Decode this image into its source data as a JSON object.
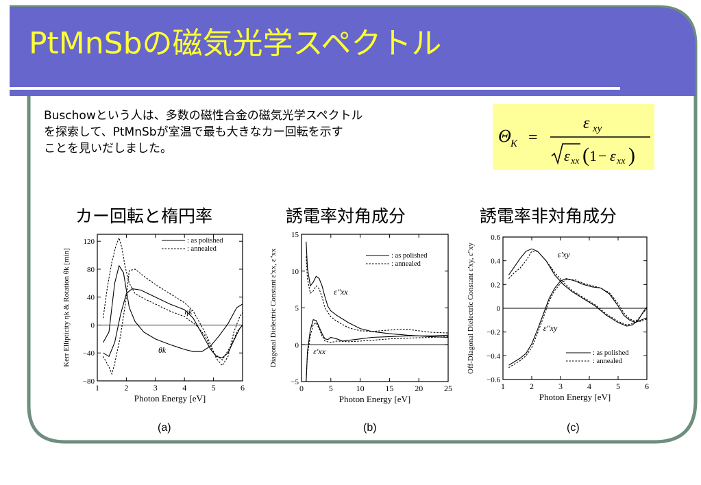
{
  "slide": {
    "title": "PtMnSbの磁気光学スペクトル",
    "body_lines": [
      "Buschowという人は、多数の磁性合金の磁気光学スペクトル",
      "を探索して、PtMnSbが室温で最も大きなカー回転を示す",
      "ことを見いだしました。"
    ],
    "formula": {
      "lhs": "Θ",
      "lhs_sub": "K",
      "equals": "=",
      "numerator": "ε",
      "numerator_sub": "xy",
      "denominator": "√ε_xx (1 − ε_xx)"
    },
    "colors": {
      "theme": "#6666cc",
      "title": "#ffff33",
      "formula_bg": "#ffff99"
    }
  },
  "chart_data": [
    {
      "id": "a",
      "type": "line",
      "heading": "カー回転と楕円率",
      "caption": "(a)",
      "xlabel": "Photon Energy [eV]",
      "ylabel": "Kerr Ellipticity ηk & Rotation θk [min]",
      "xlim": [
        1,
        6
      ],
      "ylim": [
        -80,
        130
      ],
      "xticks": [
        1,
        2,
        3,
        4,
        5,
        6
      ],
      "yticks": [
        -80,
        -40,
        0,
        40,
        80,
        120
      ],
      "ytick_labels": [
        "−80",
        "−40",
        "0",
        "40",
        "80",
        "120"
      ],
      "legend": [
        ": as polished",
        ": annealed"
      ],
      "legend_position": "top-right",
      "annotations": [
        {
          "text": "ηk",
          "x": 4.0,
          "y": 15
        },
        {
          "text": "θk",
          "x": 3.1,
          "y": -40
        }
      ],
      "series": [
        {
          "style": "solid",
          "x": [
            1.2,
            1.4,
            1.6,
            1.75,
            1.9,
            2.0,
            2.1,
            2.3,
            2.6,
            3.0,
            3.5,
            4.0,
            4.3,
            4.6,
            4.9,
            5.2,
            5.5,
            5.8,
            6.0
          ],
          "y": [
            -25,
            -10,
            60,
            85,
            75,
            50,
            25,
            5,
            -10,
            -20,
            -28,
            -35,
            -38,
            -38,
            -30,
            -15,
            2,
            25,
            30
          ]
        },
        {
          "style": "solid",
          "x": [
            1.2,
            1.4,
            1.6,
            1.8,
            2.0,
            2.2,
            2.5,
            3.0,
            3.5,
            4.0,
            4.3,
            4.5,
            4.7,
            4.9,
            5.1,
            5.3,
            5.5,
            5.7,
            5.9,
            6.0
          ],
          "y": [
            -40,
            -45,
            -25,
            15,
            45,
            52,
            50,
            40,
            30,
            22,
            10,
            -5,
            -20,
            -35,
            -45,
            -47,
            -40,
            -22,
            -5,
            0
          ]
        },
        {
          "style": "dashed",
          "x": [
            1.2,
            1.35,
            1.5,
            1.65,
            1.75,
            1.85,
            1.95,
            2.1,
            2.3,
            2.6,
            3.0,
            3.5,
            4.0,
            4.4,
            4.7,
            5.0,
            5.3,
            5.6,
            5.8,
            6.0
          ],
          "y": [
            10,
            55,
            90,
            115,
            125,
            110,
            85,
            60,
            45,
            38,
            30,
            20,
            12,
            0,
            -15,
            -40,
            -50,
            -30,
            -10,
            0
          ]
        },
        {
          "style": "dashed",
          "x": [
            1.2,
            1.4,
            1.5,
            1.6,
            1.8,
            2.0,
            2.1,
            2.3,
            2.6,
            3.0,
            3.5,
            4.0,
            4.3,
            4.5,
            4.7,
            4.9,
            5.1,
            5.3,
            5.5,
            5.7,
            5.9,
            6.0
          ],
          "y": [
            -45,
            -60,
            -70,
            -55,
            -15,
            40,
            78,
            80,
            70,
            58,
            45,
            32,
            20,
            5,
            -10,
            -28,
            -48,
            -58,
            -45,
            -10,
            12,
            18
          ]
        }
      ]
    },
    {
      "id": "b",
      "type": "line",
      "heading": "誘電率対角成分",
      "caption": "(b)",
      "xlabel": "Photon Energy [eV]",
      "ylabel": "Diagonal Dielectric Constant ε'xx, ε''xx",
      "xlim": [
        0,
        25
      ],
      "ylim": [
        -5,
        15
      ],
      "xticks": [
        0,
        5,
        10,
        15,
        20,
        25
      ],
      "yticks": [
        -5,
        0,
        5,
        10,
        15
      ],
      "ytick_labels": [
        "−5",
        "0",
        "5",
        "10",
        "15"
      ],
      "legend": [
        ": as polished",
        ": annealed"
      ],
      "legend_position": "top-right",
      "annotations": [
        {
          "text": "ε''xx",
          "x": 5.5,
          "y": 6.8
        },
        {
          "text": "ε'xx",
          "x": 2.0,
          "y": -1.3
        }
      ],
      "series": [
        {
          "style": "solid",
          "x": [
            0.8,
            1.0,
            1.5,
            2.0,
            2.5,
            3.0,
            3.5,
            4.0,
            4.5,
            5.0,
            6.0,
            7.0,
            8.0,
            10.0,
            12.0,
            15.0,
            18.0,
            22.0,
            25.0
          ],
          "y": [
            14,
            10.5,
            8,
            8.5,
            9.3,
            9.0,
            8.0,
            6.5,
            5.2,
            4.6,
            4.0,
            3.5,
            3.0,
            2.2,
            1.8,
            1.5,
            1.3,
            1.1,
            1.0
          ]
        },
        {
          "style": "dashed",
          "x": [
            0.8,
            1.0,
            1.5,
            2.0,
            2.5,
            3.0,
            3.5,
            4.0,
            5.0,
            6.0,
            8.0,
            10.0,
            12.0,
            15.0,
            18.0,
            22.0,
            25.0
          ],
          "y": [
            12,
            9,
            7,
            7.3,
            8.0,
            7.6,
            6.5,
            5.0,
            3.8,
            3.2,
            2.3,
            1.9,
            1.8,
            2.0,
            2.1,
            1.7,
            1.6
          ]
        },
        {
          "style": "solid",
          "x": [
            0.8,
            1.0,
            1.5,
            2.0,
            2.5,
            3.0,
            3.5,
            4.0,
            4.5,
            5.0,
            6.0,
            7.0,
            8.0,
            10.0,
            12.0,
            15.0,
            18.0,
            22.0,
            25.0
          ],
          "y": [
            -5,
            -1,
            2,
            3.4,
            3.3,
            2.4,
            1.5,
            0.8,
            0.7,
            1.0,
            0.8,
            0.5,
            0.6,
            0.8,
            1.0,
            1.1,
            1.2,
            1.2,
            1.3
          ]
        },
        {
          "style": "dashed",
          "x": [
            0.8,
            1.0,
            1.5,
            2.0,
            2.5,
            3.0,
            3.5,
            4.0,
            5.0,
            6.0,
            8.0,
            10.0,
            12.0,
            15.0,
            18.0,
            22.0,
            25.0
          ],
          "y": [
            -5,
            -1.5,
            1.2,
            2.7,
            3.0,
            2.2,
            1.2,
            0.5,
            0.3,
            0.5,
            0.4,
            0.5,
            0.6,
            0.8,
            0.9,
            1.0,
            1.1
          ]
        }
      ]
    },
    {
      "id": "c",
      "type": "line",
      "heading": "誘電率非対角成分",
      "caption": "(c)",
      "xlabel": "Photon Energy [eV]",
      "ylabel": "Off-Diagonal Dielectric Constant ε'xy, ε''xy",
      "xlim": [
        1,
        6
      ],
      "ylim": [
        -0.6,
        0.6
      ],
      "xticks": [
        1,
        2,
        3,
        4,
        5,
        6
      ],
      "yticks": [
        -0.6,
        -0.4,
        -0.2,
        0,
        0.2,
        0.4,
        0.6
      ],
      "ytick_labels": [
        "−0.6",
        "−0.4",
        "−0.2",
        "0",
        "0.2",
        "0.4",
        "0.6"
      ],
      "legend": [
        ": as polished",
        ": annealed"
      ],
      "legend_position": "bottom-right",
      "annotations": [
        {
          "text": "ε'xy",
          "x": 2.9,
          "y": 0.43
        },
        {
          "text": "ε''xy",
          "x": 2.4,
          "y": -0.19
        }
      ],
      "series": [
        {
          "style": "solid",
          "x": [
            1.2,
            1.4,
            1.6,
            1.8,
            2.0,
            2.2,
            2.5,
            2.8,
            3.1,
            3.4,
            3.8,
            4.2,
            4.6,
            5.0,
            5.3,
            5.5,
            5.7,
            5.9,
            6.0
          ],
          "y": [
            0.28,
            0.35,
            0.42,
            0.48,
            0.5,
            0.48,
            0.4,
            0.28,
            0.2,
            0.14,
            0.08,
            0.02,
            -0.06,
            -0.12,
            -0.15,
            -0.14,
            -0.1,
            -0.02,
            0.01
          ]
        },
        {
          "style": "dashed",
          "x": [
            1.2,
            1.4,
            1.6,
            1.8,
            2.0,
            2.2,
            2.5,
            2.8,
            3.1,
            3.4,
            3.8,
            4.2,
            4.6,
            5.0,
            5.3,
            5.5,
            5.7,
            5.9,
            6.0
          ],
          "y": [
            0.25,
            0.3,
            0.34,
            0.4,
            0.48,
            0.48,
            0.4,
            0.3,
            0.22,
            0.15,
            0.09,
            0.03,
            -0.05,
            -0.11,
            -0.14,
            -0.13,
            -0.09,
            -0.03,
            0.0
          ]
        },
        {
          "style": "solid",
          "x": [
            1.2,
            1.4,
            1.6,
            1.8,
            2.0,
            2.2,
            2.4,
            2.6,
            2.8,
            3.0,
            3.2,
            3.5,
            3.8,
            4.1,
            4.4,
            4.7,
            5.0,
            5.2,
            5.4,
            5.6,
            5.8,
            6.0
          ],
          "y": [
            -0.48,
            -0.45,
            -0.42,
            -0.38,
            -0.3,
            -0.18,
            -0.05,
            0.08,
            0.17,
            0.23,
            0.25,
            0.23,
            0.2,
            0.18,
            0.17,
            0.12,
            0.02,
            -0.06,
            -0.1,
            -0.12,
            -0.1,
            -0.08
          ]
        },
        {
          "style": "dashed",
          "x": [
            1.2,
            1.4,
            1.6,
            1.8,
            2.0,
            2.2,
            2.4,
            2.6,
            2.8,
            3.0,
            3.2,
            3.5,
            3.8,
            4.1,
            4.4,
            4.7,
            5.0,
            5.2,
            5.4,
            5.6,
            5.8,
            6.0
          ],
          "y": [
            -0.5,
            -0.47,
            -0.44,
            -0.4,
            -0.33,
            -0.21,
            -0.08,
            0.06,
            0.15,
            0.21,
            0.24,
            0.24,
            0.21,
            0.19,
            0.17,
            0.13,
            0.04,
            -0.04,
            -0.09,
            -0.11,
            -0.11,
            -0.09
          ]
        }
      ]
    }
  ]
}
